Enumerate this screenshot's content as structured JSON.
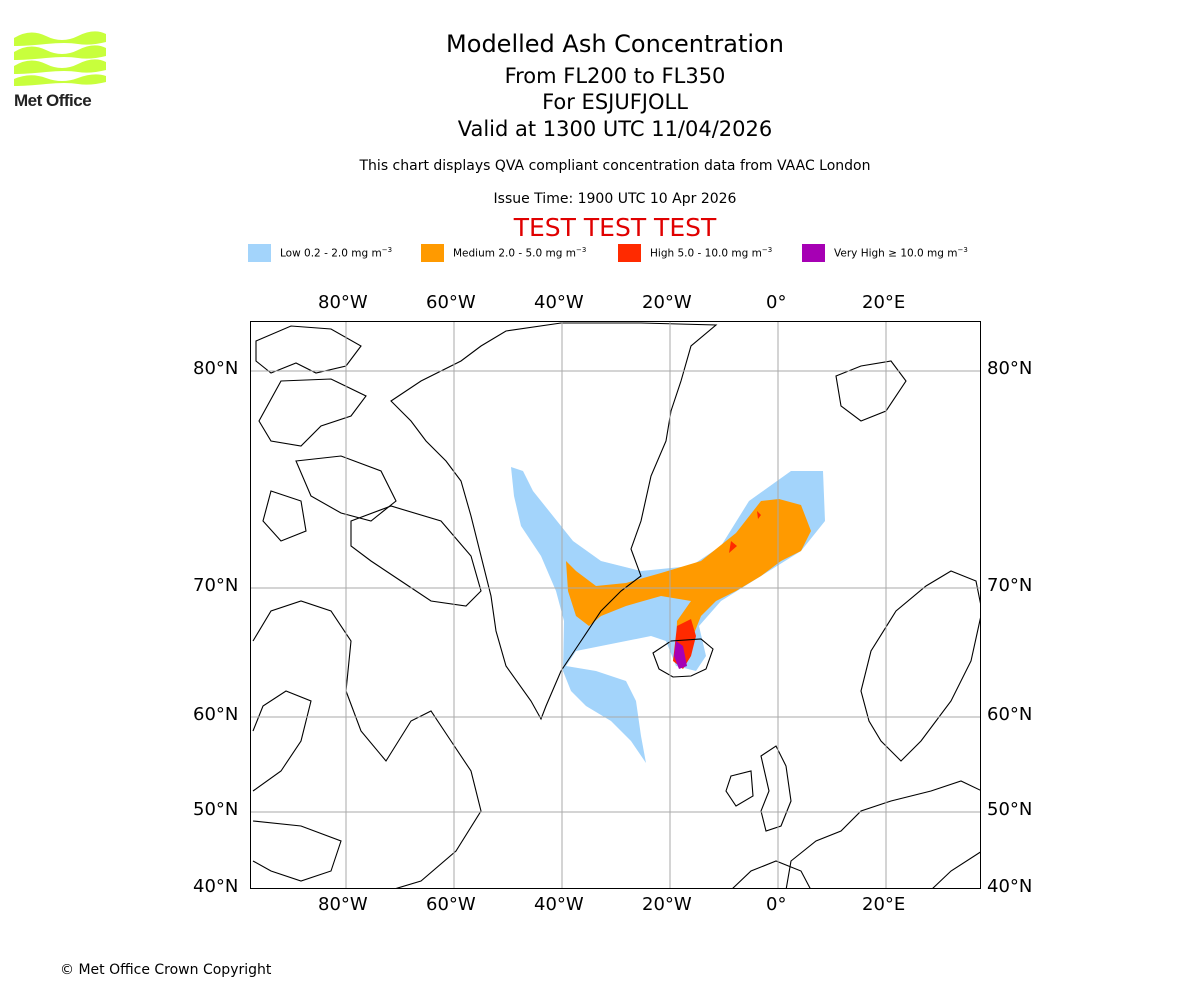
{
  "branding": {
    "logo_text": "Met Office",
    "logo_color": "#c8ff3c"
  },
  "header": {
    "title": "Modelled Ash Concentration",
    "levels": "From FL200 to FL350",
    "volcano": "For ESJUFJOLL",
    "valid": "Valid at 1300 UTC 11/04/2026",
    "note": "This chart displays QVA compliant concentration data from VAAC London",
    "issue": "Issue Time: 1900 UTC 10 Apr 2026",
    "test_banner": "TEST TEST TEST",
    "test_color": "#e00000"
  },
  "legend": [
    {
      "name": "Low",
      "range": "0.2 - 2.0 mg m",
      "color": "#a3d4fb"
    },
    {
      "name": "Medium",
      "range": "2.0 - 5.0 mg m",
      "color": "#ff9a00"
    },
    {
      "name": "High",
      "range": "5.0 - 10.0 mg m",
      "color": "#ff2a00"
    },
    {
      "name": "Very High",
      "range": "≥ 10.0 mg m",
      "color": "#a600b4"
    }
  ],
  "legend_exponent": "−3",
  "map": {
    "lon_labels": [
      "80°W",
      "60°W",
      "40°W",
      "20°W",
      "0°",
      "20°E"
    ],
    "lat_labels": [
      "80°N",
      "70°N",
      "60°N",
      "50°N",
      "40°N"
    ],
    "gridlines": true
  },
  "footer": {
    "copyright": "© Met Office Crown Copyright"
  }
}
